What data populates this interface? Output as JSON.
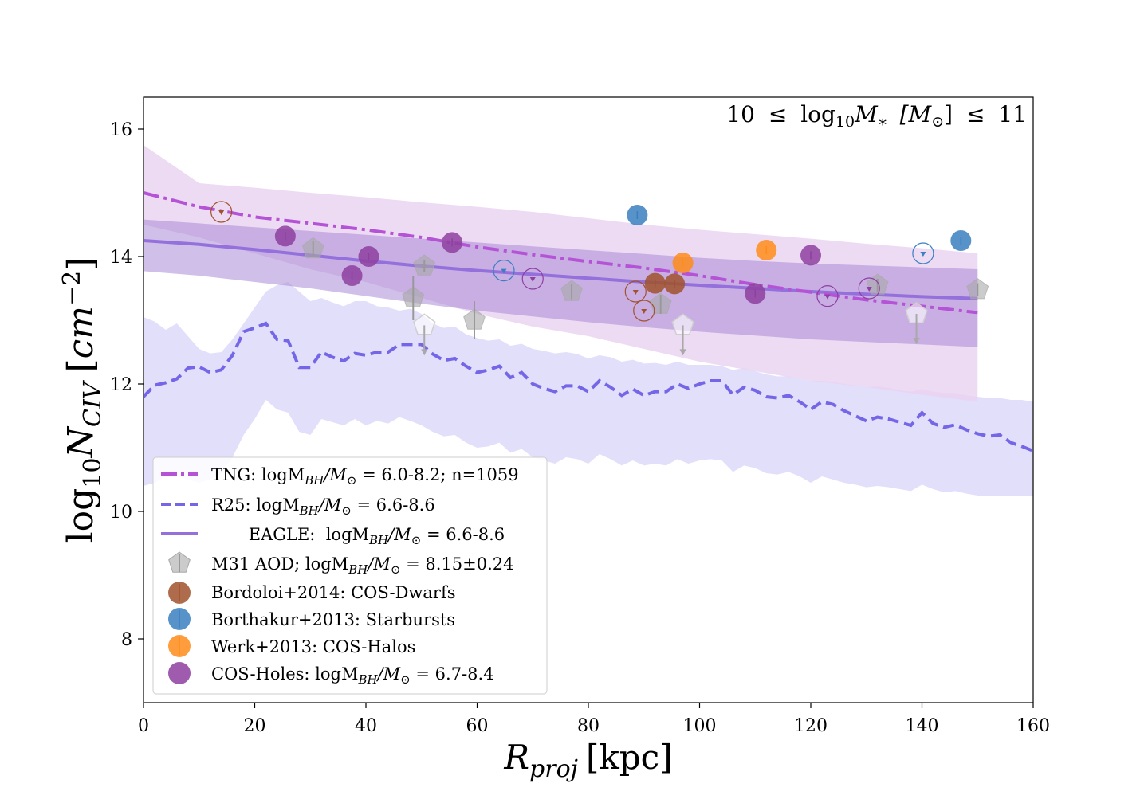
{
  "chart_data": {
    "type": "line",
    "annotation": {
      "value_parts": [
        "10",
        "≤",
        "log",
        "10",
        "M",
        "∗",
        "[M",
        "⊙",
        "]",
        "≤",
        "11"
      ]
    },
    "xlabel": {
      "var": "R",
      "sub": "proj",
      "unit": "[kpc]"
    },
    "ylabel": {
      "pre": "log",
      "pre_sub": "10",
      "var": "N",
      "sub": "CIV",
      "unit_open": "[",
      "unit": "cm",
      "unit_sup": "−2",
      "unit_close": "]"
    },
    "xlim": [
      0,
      160
    ],
    "ylim": [
      7,
      16.5
    ],
    "x_ticks": [
      0,
      20,
      40,
      60,
      80,
      100,
      120,
      140,
      160
    ],
    "y_ticks": [
      8,
      10,
      12,
      14,
      16
    ],
    "grid": false,
    "legend_placement": "lower-left",
    "colors": {
      "tng": "#b553d6",
      "tng_band": "#ead3f1",
      "r25": "#7466e6",
      "r25_band": "#d8d4fa",
      "eagle": "#9370db",
      "eagle_band": "#a98bd6",
      "m31": "#a9a9a9",
      "bordoloi": "#a0522d",
      "borthakur": "#3a7fc0",
      "werk": "#ff8c1a",
      "cosholes": "#8e3fa0"
    },
    "legend": [
      {
        "key": "tng",
        "label": "TNG: logM",
        "sub": "BH",
        "mid": "/M",
        "sub2": "⊙",
        "tail": " = 6.0-8.2; n=1059"
      },
      {
        "key": "r25",
        "label": "R25: logM",
        "sub": "BH",
        "mid": "/M",
        "sub2": "⊙",
        "tail": " = 6.6-8.6"
      },
      {
        "key": "eagle",
        "label": "EAGLE:  logM",
        "sub": "BH",
        "mid": "/M",
        "sub2": "⊙",
        "tail": " = 6.6-8.6"
      },
      {
        "key": "m31",
        "label": "M31 AOD; logM",
        "sub": "BH",
        "mid": "/M",
        "sub2": "⊙",
        "tail": " = 8.15±0.24"
      },
      {
        "key": "bordoloi",
        "label": "Bordoloi+2014: COS-Dwarfs"
      },
      {
        "key": "borthakur",
        "label": "Borthakur+2013: Starbursts"
      },
      {
        "key": "werk",
        "label": "Werk+2013: COS-Halos"
      },
      {
        "key": "cosholes",
        "label": "COS-Holes: logM",
        "sub": "BH",
        "mid": "/M",
        "sub2": "⊙",
        "tail": " = 6.7-8.4"
      }
    ],
    "series": [
      {
        "name": "TNG",
        "kind": "line",
        "x": [
          0,
          10,
          20,
          30,
          40,
          50,
          60,
          70,
          80,
          90,
          100,
          110,
          120,
          130,
          140,
          150
        ],
        "y": [
          15.0,
          14.78,
          14.62,
          14.52,
          14.42,
          14.3,
          14.15,
          14.03,
          13.92,
          13.82,
          13.7,
          13.56,
          13.44,
          13.32,
          13.22,
          13.12
        ],
        "band_upper": [
          15.75,
          15.15,
          15.08,
          15.0,
          14.93,
          14.85,
          14.78,
          14.7,
          14.6,
          14.5,
          14.42,
          14.35,
          14.28,
          14.2,
          14.13,
          14.05
        ],
        "band_lower": [
          14.5,
          14.3,
          14.05,
          13.8,
          13.6,
          13.35,
          13.1,
          12.9,
          12.75,
          12.55,
          12.35,
          12.2,
          12.05,
          11.95,
          11.83,
          11.72
        ]
      },
      {
        "name": "R25",
        "kind": "dashed",
        "x": [
          0,
          2,
          4,
          6,
          8,
          10,
          12,
          14,
          16,
          18,
          20,
          22,
          24,
          26,
          28,
          30,
          32,
          34,
          36,
          38,
          40,
          42,
          44,
          46,
          48,
          50,
          52,
          54,
          56,
          58,
          60,
          62,
          64,
          66,
          68,
          70,
          72,
          74,
          76,
          78,
          80,
          82,
          84,
          86,
          88,
          90,
          92,
          94,
          96,
          98,
          100,
          102,
          104,
          106,
          108,
          110,
          112,
          114,
          116,
          118,
          120,
          122,
          124,
          126,
          128,
          130,
          132,
          134,
          136,
          138,
          140,
          142,
          144,
          146,
          148,
          150,
          152,
          154,
          156,
          158,
          160
        ],
        "y": [
          11.8,
          11.98,
          12.02,
          12.08,
          12.25,
          12.27,
          12.18,
          12.22,
          12.45,
          12.82,
          12.88,
          12.95,
          12.7,
          12.68,
          12.26,
          12.26,
          12.5,
          12.42,
          12.36,
          12.48,
          12.45,
          12.5,
          12.5,
          12.62,
          12.62,
          12.62,
          12.47,
          12.37,
          12.4,
          12.28,
          12.18,
          12.22,
          12.28,
          12.1,
          12.18,
          12.0,
          11.93,
          11.88,
          11.97,
          11.97,
          11.88,
          12.05,
          11.95,
          11.82,
          11.92,
          11.82,
          11.88,
          11.88,
          12.0,
          11.93,
          12.0,
          12.05,
          12.05,
          11.83,
          11.95,
          11.9,
          11.8,
          11.78,
          11.82,
          11.72,
          11.6,
          11.72,
          11.68,
          11.58,
          11.5,
          11.42,
          11.48,
          11.45,
          11.4,
          11.35,
          11.55,
          11.38,
          11.32,
          11.36,
          11.28,
          11.22,
          11.18,
          11.2,
          11.08,
          11.02,
          10.95
        ],
        "band_upper": [
          13.05,
          12.98,
          12.85,
          12.95,
          12.75,
          12.55,
          12.48,
          12.5,
          12.7,
          12.95,
          13.2,
          13.45,
          13.55,
          13.6,
          13.45,
          13.3,
          13.35,
          13.28,
          13.22,
          13.3,
          13.3,
          13.22,
          13.2,
          13.15,
          13.18,
          13.1,
          12.95,
          12.88,
          12.9,
          12.78,
          12.72,
          12.68,
          12.7,
          12.6,
          12.63,
          12.55,
          12.52,
          12.48,
          12.5,
          12.47,
          12.4,
          12.45,
          12.42,
          12.35,
          12.38,
          12.32,
          12.33,
          12.3,
          12.35,
          12.3,
          12.3,
          12.3,
          12.28,
          12.22,
          12.25,
          12.2,
          12.15,
          12.12,
          12.12,
          12.08,
          12.05,
          12.05,
          12.03,
          12.0,
          11.98,
          11.95,
          11.96,
          11.94,
          11.9,
          11.88,
          11.92,
          11.88,
          11.86,
          11.86,
          11.82,
          11.8,
          11.78,
          11.78,
          11.75,
          11.75,
          11.72
        ],
        "band_lower": [
          10.4,
          10.45,
          10.55,
          10.55,
          10.5,
          10.45,
          10.5,
          10.6,
          10.85,
          11.2,
          11.45,
          11.75,
          11.6,
          11.55,
          11.25,
          11.2,
          11.45,
          11.4,
          11.35,
          11.45,
          11.35,
          11.42,
          11.38,
          11.48,
          11.42,
          11.35,
          11.25,
          11.18,
          11.2,
          11.08,
          11.0,
          11.02,
          11.08,
          10.92,
          10.98,
          10.85,
          10.8,
          10.75,
          10.85,
          10.82,
          10.75,
          10.9,
          10.82,
          10.72,
          10.8,
          10.72,
          10.75,
          10.72,
          10.82,
          10.75,
          10.8,
          10.82,
          10.8,
          10.62,
          10.72,
          10.68,
          10.6,
          10.58,
          10.62,
          10.55,
          10.45,
          10.55,
          10.5,
          10.45,
          10.42,
          10.38,
          10.4,
          10.38,
          10.35,
          10.32,
          10.42,
          10.35,
          10.3,
          10.32,
          10.28,
          10.25,
          10.25,
          10.25,
          10.25,
          10.25,
          10.25
        ]
      },
      {
        "name": "EAGLE",
        "kind": "solid",
        "x": [
          0,
          10,
          20,
          30,
          40,
          50,
          60,
          70,
          80,
          90,
          100,
          110,
          120,
          130,
          140,
          150
        ],
        "y": [
          14.25,
          14.19,
          14.11,
          14.02,
          13.93,
          13.85,
          13.78,
          13.72,
          13.66,
          13.6,
          13.55,
          13.5,
          13.45,
          13.41,
          13.37,
          13.34
        ],
        "band_upper": [
          14.58,
          14.52,
          14.46,
          14.4,
          14.34,
          14.28,
          14.22,
          14.16,
          14.1,
          14.04,
          13.98,
          13.93,
          13.89,
          13.86,
          13.83,
          13.8
        ],
        "band_lower": [
          13.77,
          13.7,
          13.6,
          13.5,
          13.38,
          13.26,
          13.15,
          13.06,
          12.97,
          12.89,
          12.82,
          12.76,
          12.7,
          12.66,
          12.62,
          12.58
        ]
      }
    ],
    "points": {
      "m31": [
        {
          "x": 30.5,
          "y": 14.12,
          "err": 0.12,
          "limit": false
        },
        {
          "x": 50.5,
          "y": 13.85,
          "err": 0.1,
          "limit": false
        },
        {
          "x": 48.5,
          "y": 13.35,
          "err": 0.35,
          "limit": false
        },
        {
          "x": 59.5,
          "y": 13.0,
          "err": 0.3,
          "limit": false
        },
        {
          "x": 77.0,
          "y": 13.45,
          "err": 0.12,
          "limit": false
        },
        {
          "x": 93.0,
          "y": 13.25,
          "err": 0.15,
          "limit": false
        },
        {
          "x": 132.0,
          "y": 13.55,
          "err": 0.1,
          "limit": false
        },
        {
          "x": 150.0,
          "y": 13.48,
          "err": 0.1,
          "limit": false
        },
        {
          "x": 50.5,
          "y": 12.92,
          "err": 0,
          "limit": true
        },
        {
          "x": 97.0,
          "y": 12.92,
          "err": 0,
          "limit": true
        },
        {
          "x": 139.0,
          "y": 13.1,
          "err": 0,
          "limit": true
        }
      ],
      "bordoloi": [
        {
          "x": 14.0,
          "y": 14.7,
          "limit": true
        },
        {
          "x": 88.5,
          "y": 13.45,
          "limit": true
        },
        {
          "x": 90.0,
          "y": 13.15,
          "limit": true
        },
        {
          "x": 92.0,
          "y": 13.58,
          "limit": false
        },
        {
          "x": 95.5,
          "y": 13.57,
          "limit": false
        }
      ],
      "borthakur": [
        {
          "x": 88.8,
          "y": 14.65,
          "limit": false
        },
        {
          "x": 147.0,
          "y": 14.25,
          "limit": false
        },
        {
          "x": 64.8,
          "y": 13.78,
          "limit": true
        },
        {
          "x": 140.2,
          "y": 14.05,
          "limit": true
        }
      ],
      "werk": [
        {
          "x": 97.0,
          "y": 13.9,
          "limit": false
        },
        {
          "x": 112.0,
          "y": 14.1,
          "limit": false
        }
      ],
      "cosholes": [
        {
          "x": 25.5,
          "y": 14.32,
          "limit": false
        },
        {
          "x": 37.5,
          "y": 13.7,
          "limit": false
        },
        {
          "x": 40.5,
          "y": 14.0,
          "limit": false
        },
        {
          "x": 55.5,
          "y": 14.22,
          "limit": false
        },
        {
          "x": 110.0,
          "y": 13.42,
          "limit": false
        },
        {
          "x": 120.0,
          "y": 14.02,
          "limit": false
        },
        {
          "x": 70.0,
          "y": 13.65,
          "limit": true
        },
        {
          "x": 123.0,
          "y": 13.38,
          "limit": true
        },
        {
          "x": 130.5,
          "y": 13.5,
          "limit": true
        }
      ]
    }
  }
}
